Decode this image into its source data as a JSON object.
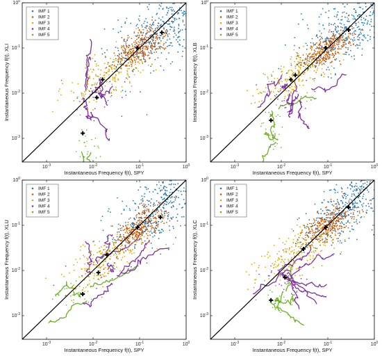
{
  "colors": {
    "imf1": "#1f77b4",
    "imf2": "#d35400",
    "imf3": "#e0a800",
    "imf4": "#7d2fa3",
    "imf5": "#6ab023",
    "diagonal": "#000000",
    "marker": "#000000"
  },
  "chart_data": [
    {
      "type": "scatter",
      "scale": "log-log",
      "xlabel": "Instantaneous Frequency f(t), SPY",
      "ylabel": "Instantaneous Frequency f(t), XLI",
      "xlim": [
        0.0003,
        1
      ],
      "ylim": [
        0.0003,
        1
      ],
      "ticks": [
        0.001,
        0.01,
        0.1,
        1
      ],
      "tick_labels": [
        "10^-3",
        "10^-2",
        "10^-1",
        "10^0"
      ],
      "legend": {
        "placement": "top-left",
        "entries": [
          "IMF 1",
          "IMF 2",
          "IMF 3",
          "IMF 4",
          "IMF 5"
        ]
      },
      "reference_line": "y = x",
      "series": [
        {
          "name": "IMF 1",
          "center": [
            0.3,
            0.25
          ],
          "spread": [
            0.55,
            0.6
          ],
          "mean_marker": [
            0.3,
            0.22
          ]
        },
        {
          "name": "IMF 2",
          "center": [
            0.1,
            0.1
          ],
          "spread": [
            0.28,
            0.28
          ],
          "mean_marker": [
            0.09,
            0.1
          ]
        },
        {
          "name": "IMF 3",
          "center": [
            0.025,
            0.03
          ],
          "spread": [
            0.45,
            0.4
          ],
          "mean_marker": [
            0.016,
            0.02
          ]
        },
        {
          "name": "IMF 4",
          "center": [
            0.012,
            0.009
          ],
          "spread": [
            0.35,
            0.3
          ],
          "mean_marker": [
            0.012,
            0.008
          ]
        },
        {
          "name": "IMF 5",
          "center": [
            0.007,
            0.0006
          ],
          "spread": [
            0.2,
            0.35
          ],
          "mean_marker": [
            0.006,
            0.0013
          ]
        }
      ]
    },
    {
      "type": "scatter",
      "scale": "log-log",
      "xlabel": "Instantaneous Frequency f(t), SPY",
      "ylabel": "Instantaneous Frequency f(t), XLB",
      "xlim": [
        0.0003,
        1
      ],
      "ylim": [
        0.0003,
        1
      ],
      "ticks": [
        0.001,
        0.01,
        0.1,
        1
      ],
      "tick_labels": [
        "10^-3",
        "10^-2",
        "10^-1",
        "10^0"
      ],
      "legend": {
        "placement": "top-left",
        "entries": [
          "IMF 1",
          "IMF 2",
          "IMF 3",
          "IMF 4",
          "IMF 5"
        ]
      },
      "reference_line": "y = x",
      "series": [
        {
          "name": "IMF 1",
          "center": [
            0.3,
            0.28
          ],
          "spread": [
            0.55,
            0.6
          ],
          "mean_marker": [
            0.28,
            0.25
          ]
        },
        {
          "name": "IMF 2",
          "center": [
            0.1,
            0.1
          ],
          "spread": [
            0.28,
            0.28
          ],
          "mean_marker": [
            0.09,
            0.1
          ]
        },
        {
          "name": "IMF 3",
          "center": [
            0.025,
            0.03
          ],
          "spread": [
            0.45,
            0.4
          ],
          "mean_marker": [
            0.02,
            0.025
          ]
        },
        {
          "name": "IMF 4",
          "center": [
            0.015,
            0.01
          ],
          "spread": [
            0.3,
            0.25
          ],
          "mean_marker": [
            0.016,
            0.02
          ]
        },
        {
          "name": "IMF 5",
          "center": [
            0.007,
            0.0015
          ],
          "spread": [
            0.15,
            0.3
          ],
          "mean_marker": [
            0.006,
            0.0025
          ]
        }
      ]
    },
    {
      "type": "scatter",
      "scale": "log-log",
      "xlabel": "Instantaneous Frequency f(t), SPY",
      "ylabel": "Instantaneous Frequency f(t), XLU",
      "xlim": [
        0.0003,
        1
      ],
      "ylim": [
        0.0003,
        1
      ],
      "ticks": [
        0.001,
        0.01,
        0.1,
        1
      ],
      "tick_labels": [
        "10^-3",
        "10^-2",
        "10^-1",
        "10^0"
      ],
      "legend": {
        "placement": "top-left",
        "entries": [
          "IMF 1",
          "IMF 2",
          "IMF 3",
          "IMF 4",
          "IMF 5"
        ]
      },
      "reference_line": "y = x",
      "series": [
        {
          "name": "IMF 1",
          "center": [
            0.3,
            0.25
          ],
          "spread": [
            0.55,
            0.6
          ],
          "mean_marker": [
            0.28,
            0.15
          ]
        },
        {
          "name": "IMF 2",
          "center": [
            0.1,
            0.09
          ],
          "spread": [
            0.28,
            0.3
          ],
          "mean_marker": [
            0.09,
            0.09
          ]
        },
        {
          "name": "IMF 3",
          "center": [
            0.02,
            0.02
          ],
          "spread": [
            0.45,
            0.4
          ],
          "mean_marker": [
            0.02,
            0.022
          ]
        },
        {
          "name": "IMF 4",
          "center": [
            0.015,
            0.01
          ],
          "spread": [
            0.3,
            0.28
          ],
          "mean_marker": [
            0.013,
            0.009
          ]
        },
        {
          "name": "IMF 5",
          "center": [
            0.006,
            0.003
          ],
          "spread": [
            0.25,
            0.2
          ],
          "mean_marker": [
            0.006,
            0.003
          ]
        }
      ]
    },
    {
      "type": "scatter",
      "scale": "log-log",
      "xlabel": "Instantaneous Frequency f(t), SPY",
      "ylabel": "Instantaneous Frequency f(t), XLC",
      "xlim": [
        0.0003,
        1
      ],
      "ylim": [
        0.0003,
        1
      ],
      "ticks": [
        0.001,
        0.01,
        0.1,
        1
      ],
      "tick_labels": [
        "10^-3",
        "10^-2",
        "10^-1",
        "10^0"
      ],
      "legend": {
        "placement": "top-left",
        "entries": [
          "IMF 1",
          "IMF 2",
          "IMF 3",
          "IMF 4",
          "IMF 5"
        ]
      },
      "reference_line": "y = x",
      "series": [
        {
          "name": "IMF 1",
          "center": [
            0.3,
            0.28
          ],
          "spread": [
            0.5,
            0.55
          ],
          "mean_marker": [
            0.28,
            0.25
          ]
        },
        {
          "name": "IMF 2",
          "center": [
            0.1,
            0.1
          ],
          "spread": [
            0.28,
            0.3
          ],
          "mean_marker": [
            0.09,
            0.09
          ]
        },
        {
          "name": "IMF 3",
          "center": [
            0.025,
            0.025
          ],
          "spread": [
            0.45,
            0.4
          ],
          "mean_marker": [
            0.03,
            0.03
          ]
        },
        {
          "name": "IMF 4",
          "center": [
            0.012,
            0.008
          ],
          "spread": [
            0.3,
            0.25
          ],
          "mean_marker": [
            0.012,
            0.007
          ]
        },
        {
          "name": "IMF 5",
          "center": [
            0.008,
            0.0025
          ],
          "spread": [
            0.2,
            0.2
          ],
          "mean_marker": [
            0.006,
            0.0022
          ]
        }
      ]
    }
  ]
}
